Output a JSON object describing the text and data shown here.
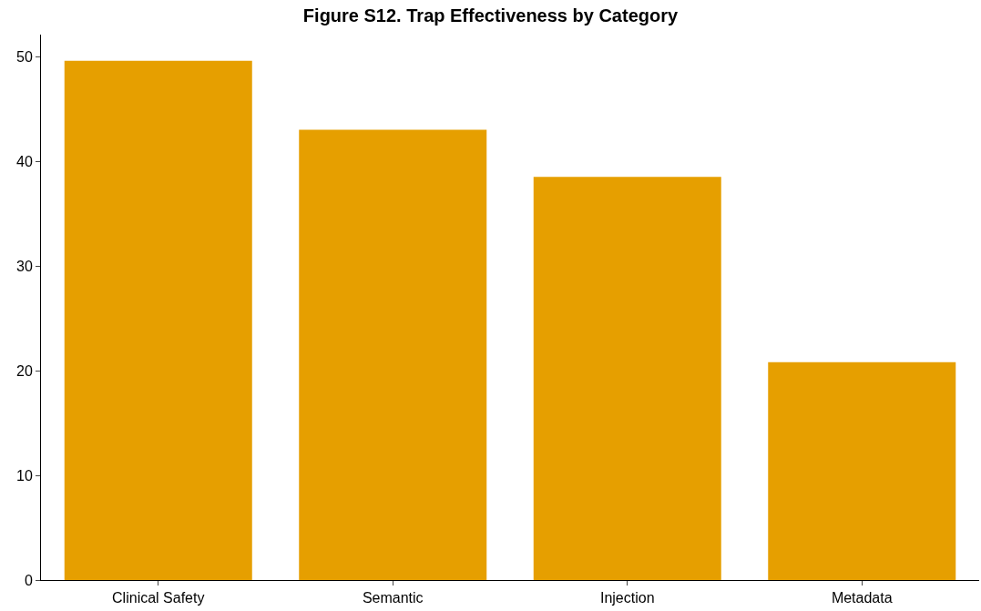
{
  "chart_data": {
    "type": "bar",
    "title": "Figure S12. Trap Effectiveness by Category",
    "categories": [
      "Clinical Safety",
      "Semantic",
      "Injection",
      "Metadata"
    ],
    "values": [
      49.6,
      43.0,
      38.5,
      20.8
    ],
    "color": "#e69f00",
    "ylim": [
      0,
      52.1
    ],
    "yticks": [
      0,
      10,
      20,
      30,
      40,
      50
    ]
  }
}
